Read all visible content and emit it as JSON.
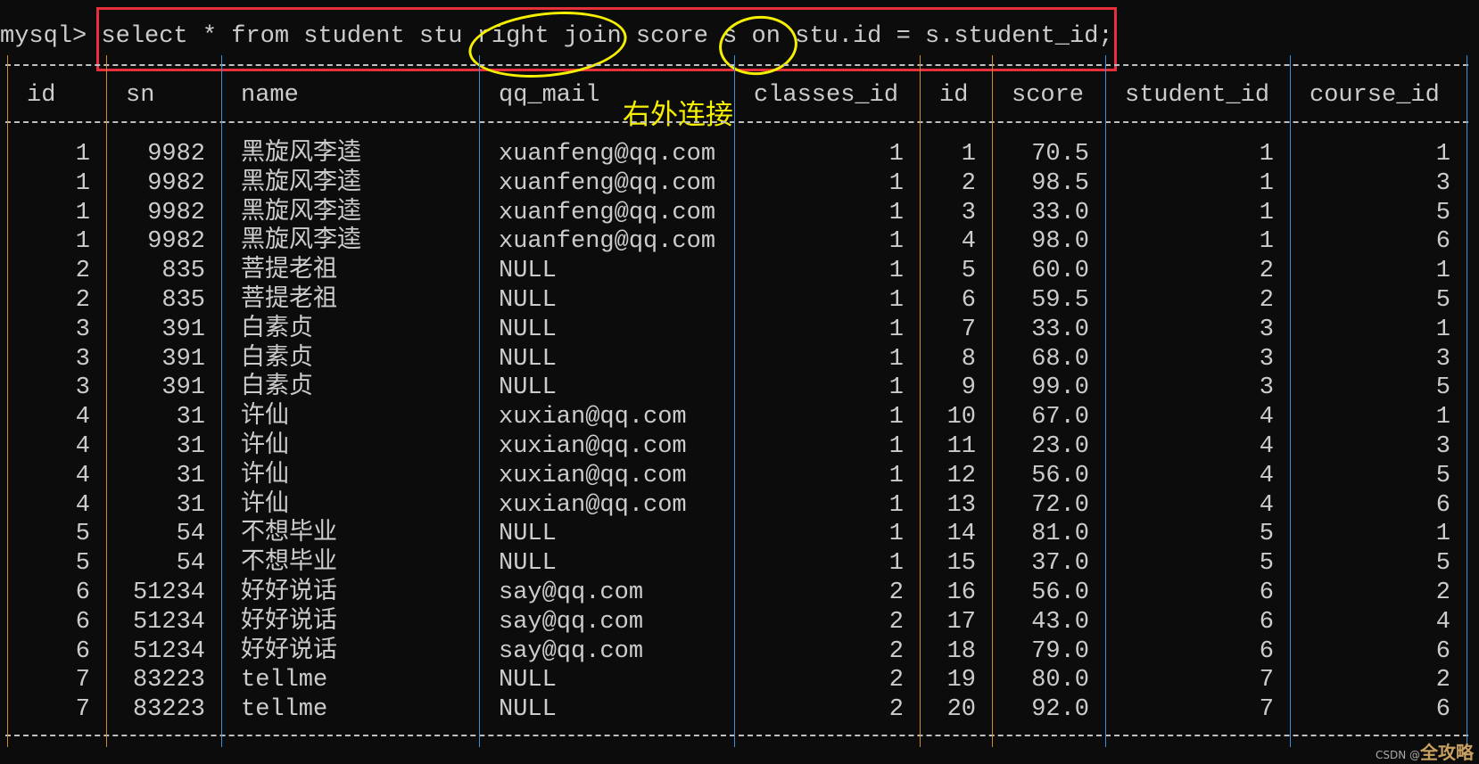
{
  "terminal": {
    "prompt": "mysql> ",
    "query": "select * from student stu right join score s on stu.id = s.student_id;",
    "annotation": "右外连接",
    "watermark_prefix": "CSDN @",
    "watermark_name": "全攻略"
  },
  "colors": {
    "background": "#0c0c0c",
    "text": "#cccccc",
    "highlight_box": "#e8303a",
    "circle": "#f5f000",
    "border_blue": "#3d8fd6",
    "border_orange": "#d08a30"
  },
  "table": {
    "columns": [
      "id",
      "sn",
      "name",
      "qq_mail",
      "classes_id",
      "id",
      "score",
      "student_id",
      "course_id"
    ],
    "rows": [
      [
        "1",
        "9982",
        "黑旋风李逵",
        "xuanfeng@qq.com",
        "1",
        "1",
        "70.5",
        "1",
        "1"
      ],
      [
        "1",
        "9982",
        "黑旋风李逵",
        "xuanfeng@qq.com",
        "1",
        "2",
        "98.5",
        "1",
        "3"
      ],
      [
        "1",
        "9982",
        "黑旋风李逵",
        "xuanfeng@qq.com",
        "1",
        "3",
        "33.0",
        "1",
        "5"
      ],
      [
        "1",
        "9982",
        "黑旋风李逵",
        "xuanfeng@qq.com",
        "1",
        "4",
        "98.0",
        "1",
        "6"
      ],
      [
        "2",
        "835",
        "菩提老祖",
        "NULL",
        "1",
        "5",
        "60.0",
        "2",
        "1"
      ],
      [
        "2",
        "835",
        "菩提老祖",
        "NULL",
        "1",
        "6",
        "59.5",
        "2",
        "5"
      ],
      [
        "3",
        "391",
        "白素贞",
        "NULL",
        "1",
        "7",
        "33.0",
        "3",
        "1"
      ],
      [
        "3",
        "391",
        "白素贞",
        "NULL",
        "1",
        "8",
        "68.0",
        "3",
        "3"
      ],
      [
        "3",
        "391",
        "白素贞",
        "NULL",
        "1",
        "9",
        "99.0",
        "3",
        "5"
      ],
      [
        "4",
        "31",
        "许仙",
        "xuxian@qq.com",
        "1",
        "10",
        "67.0",
        "4",
        "1"
      ],
      [
        "4",
        "31",
        "许仙",
        "xuxian@qq.com",
        "1",
        "11",
        "23.0",
        "4",
        "3"
      ],
      [
        "4",
        "31",
        "许仙",
        "xuxian@qq.com",
        "1",
        "12",
        "56.0",
        "4",
        "5"
      ],
      [
        "4",
        "31",
        "许仙",
        "xuxian@qq.com",
        "1",
        "13",
        "72.0",
        "4",
        "6"
      ],
      [
        "5",
        "54",
        "不想毕业",
        "NULL",
        "1",
        "14",
        "81.0",
        "5",
        "1"
      ],
      [
        "5",
        "54",
        "不想毕业",
        "NULL",
        "1",
        "15",
        "37.0",
        "5",
        "5"
      ],
      [
        "6",
        "51234",
        "好好说话",
        "say@qq.com",
        "2",
        "16",
        "56.0",
        "6",
        "2"
      ],
      [
        "6",
        "51234",
        "好好说话",
        "say@qq.com",
        "2",
        "17",
        "43.0",
        "6",
        "4"
      ],
      [
        "6",
        "51234",
        "好好说话",
        "say@qq.com",
        "2",
        "18",
        "79.0",
        "6",
        "6"
      ],
      [
        "7",
        "83223",
        "tellme",
        "NULL",
        "2",
        "19",
        "80.0",
        "7",
        "2"
      ],
      [
        "7",
        "83223",
        "tellme",
        "NULL",
        "2",
        "20",
        "92.0",
        "7",
        "6"
      ]
    ]
  }
}
